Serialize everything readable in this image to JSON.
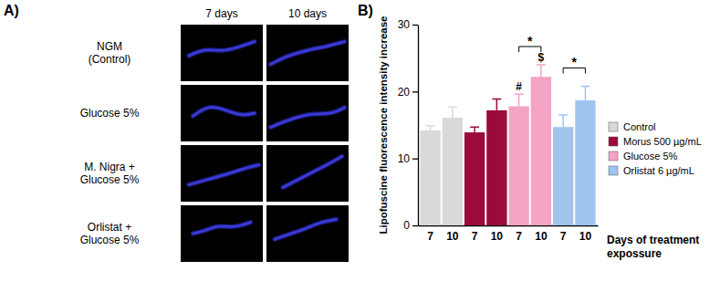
{
  "panel_labels": [
    "A)",
    "B)"
  ],
  "image_grid": {
    "columns": [
      "7 days",
      "10 days"
    ],
    "rows": [
      [
        "NGM",
        "(Control)"
      ],
      [
        "Glucose 5%"
      ],
      [
        "M. Nigra +",
        "Glucose 5%"
      ],
      [
        "Orlistat +",
        "Glucose 5%"
      ]
    ]
  },
  "chart_data": {
    "type": "bar",
    "y_label": "Lipofuscine fluorescence intensity increase",
    "x_label": "Days of treatment expossure",
    "categories": [
      "7",
      "10",
      "7",
      "10",
      "7",
      "10",
      "7",
      "10"
    ],
    "series": [
      {
        "name": "Control",
        "color": "#d9d9d9",
        "values": [
          14.2,
          16.1,
          null,
          null,
          null,
          null,
          null,
          null
        ],
        "errors": [
          0.7,
          1.6,
          null,
          null,
          null,
          null,
          null,
          null
        ]
      },
      {
        "name": "Morus 500 µg/mL",
        "color": "#9b0a3c",
        "values": [
          null,
          null,
          13.9,
          17.2,
          null,
          null,
          null,
          null
        ],
        "errors": [
          null,
          null,
          0.8,
          1.7,
          null,
          null,
          null,
          null
        ]
      },
      {
        "name": "Glucose 5%",
        "color": "#f5a3c5",
        "values": [
          null,
          null,
          null,
          null,
          17.8,
          22.2,
          null,
          null
        ],
        "errors": [
          null,
          null,
          null,
          null,
          1.8,
          1.8,
          null,
          null
        ]
      },
      {
        "name": "Orlistat 6 µg/mL",
        "color": "#9fc5ef",
        "values": [
          null,
          null,
          null,
          null,
          null,
          null,
          14.7,
          18.7
        ],
        "errors": [
          null,
          null,
          null,
          null,
          null,
          null,
          1.8,
          2.1
        ]
      }
    ],
    "ylim": [
      0,
      30
    ],
    "yticks": [
      0,
      10,
      20,
      30
    ],
    "legend": "right",
    "annotations": [
      {
        "text": "#",
        "index": 4
      },
      {
        "text": "$",
        "index": 5
      }
    ],
    "brackets": [
      {
        "text": "*",
        "from": 4,
        "to": 5
      },
      {
        "text": "*",
        "from": 6,
        "to": 7
      }
    ]
  }
}
